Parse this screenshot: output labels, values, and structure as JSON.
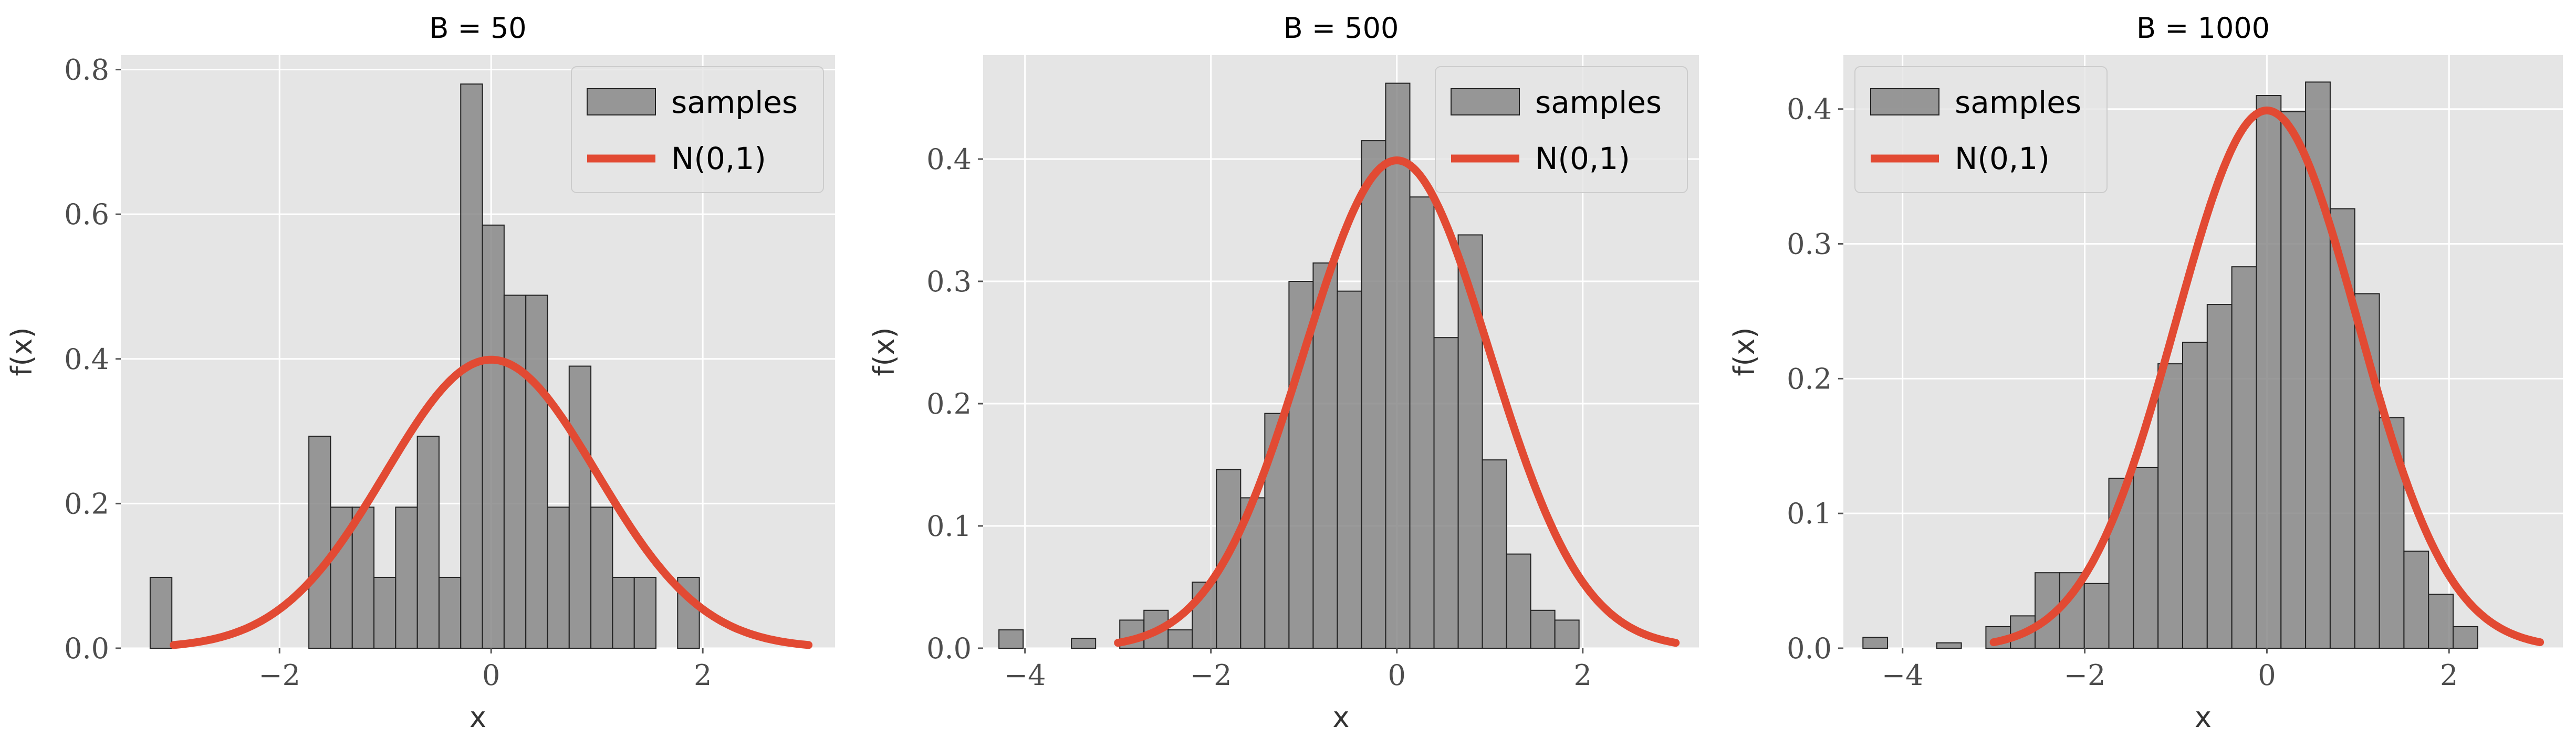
{
  "chart_data": [
    {
      "type": "bar",
      "title": "B = 50",
      "xlabel": "x",
      "ylabel": "f(x)",
      "xlim": [
        -3.5,
        3.25
      ],
      "ylim": [
        0,
        0.82
      ],
      "xticks": [
        -2,
        0,
        2
      ],
      "yticks": [
        0.0,
        0.2,
        0.4,
        0.6,
        0.8
      ],
      "xtick_labels": [
        "−2",
        "0",
        "2"
      ],
      "ytick_labels": [
        "0.0",
        "0.2",
        "0.4",
        "0.6",
        "0.8"
      ],
      "grid": true,
      "legend_position": "top-right",
      "series": [
        {
          "name": "samples",
          "kind": "histogram",
          "color": "#888888",
          "bin_width": 0.205,
          "bin_centers": [
            -3.12,
            -1.62,
            -1.415,
            -1.21,
            -1.005,
            -0.8,
            -0.595,
            -0.39,
            -0.185,
            0.02,
            0.225,
            0.43,
            0.635,
            0.84,
            1.045,
            1.25,
            1.455,
            1.865
          ],
          "values": [
            0.098,
            0.293,
            0.195,
            0.195,
            0.098,
            0.195,
            0.293,
            0.098,
            0.78,
            0.585,
            0.488,
            0.488,
            0.195,
            0.39,
            0.195,
            0.098,
            0.098,
            0.098
          ]
        },
        {
          "name": "N(0,1)",
          "kind": "pdf",
          "color": "#E24A33",
          "x_range": [
            -3,
            3
          ]
        }
      ]
    },
    {
      "type": "bar",
      "title": "B = 500",
      "xlabel": "x",
      "ylabel": "f(x)",
      "xlim": [
        -4.45,
        3.25
      ],
      "ylim": [
        0,
        0.485
      ],
      "xticks": [
        -4,
        -2,
        0,
        2
      ],
      "yticks": [
        0.0,
        0.1,
        0.2,
        0.3,
        0.4
      ],
      "xtick_labels": [
        "−4",
        "−2",
        "0",
        "2"
      ],
      "ytick_labels": [
        "0.0",
        "0.1",
        "0.2",
        "0.3",
        "0.4"
      ],
      "grid": true,
      "legend_position": "top-right",
      "series": [
        {
          "name": "samples",
          "kind": "histogram",
          "color": "#888888",
          "bin_width": 0.26,
          "bin_centers": [
            -4.15,
            -3.37,
            -2.85,
            -2.59,
            -2.33,
            -2.07,
            -1.81,
            -1.55,
            -1.29,
            -1.03,
            -0.77,
            -0.51,
            -0.25,
            0.01,
            0.27,
            0.53,
            0.79,
            1.05,
            1.31,
            1.57,
            1.83,
            2.09
          ],
          "values": [
            0.015,
            0.008,
            0.023,
            0.031,
            0.015,
            0.054,
            0.146,
            0.123,
            0.192,
            0.3,
            0.315,
            0.292,
            0.415,
            0.462,
            0.369,
            0.254,
            0.338,
            0.154,
            0.077,
            0.031,
            0.023,
            0.0
          ]
        },
        {
          "name": "N(0,1)",
          "kind": "pdf",
          "color": "#E24A33",
          "x_range": [
            -3,
            3
          ]
        }
      ]
    },
    {
      "type": "bar",
      "title": "B = 1000",
      "xlabel": "x",
      "ylabel": "f(x)",
      "xlim": [
        -4.65,
        3.25
      ],
      "ylim": [
        0,
        0.44
      ],
      "xticks": [
        -4,
        -2,
        0,
        2
      ],
      "yticks": [
        0.0,
        0.1,
        0.2,
        0.3,
        0.4
      ],
      "xtick_labels": [
        "−4",
        "−2",
        "0",
        "2"
      ],
      "ytick_labels": [
        "0.0",
        "0.1",
        "0.2",
        "0.3",
        "0.4"
      ],
      "grid": true,
      "legend_position": "top-left",
      "series": [
        {
          "name": "samples",
          "kind": "histogram",
          "color": "#888888",
          "bin_width": 0.27,
          "bin_centers": [
            -4.3,
            -3.49,
            -2.95,
            -2.68,
            -2.41,
            -2.14,
            -1.87,
            -1.6,
            -1.33,
            -1.06,
            -0.79,
            -0.52,
            -0.25,
            0.02,
            0.29,
            0.56,
            0.83,
            1.1,
            1.37,
            1.64,
            1.91,
            2.18
          ],
          "values": [
            0.008,
            0.004,
            0.016,
            0.024,
            0.056,
            0.056,
            0.048,
            0.126,
            0.134,
            0.211,
            0.227,
            0.255,
            0.283,
            0.41,
            0.398,
            0.42,
            0.326,
            0.263,
            0.171,
            0.072,
            0.04,
            0.016
          ]
        },
        {
          "name": "N(0,1)",
          "kind": "pdf",
          "color": "#E24A33",
          "x_range": [
            -3,
            3
          ]
        }
      ]
    }
  ]
}
